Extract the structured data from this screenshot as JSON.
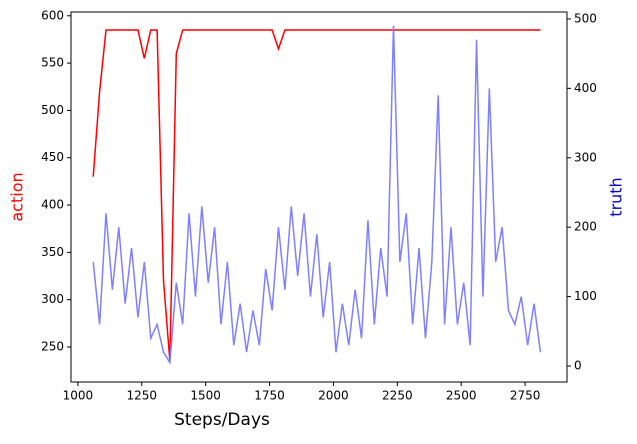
{
  "chart_data": {
    "type": "line",
    "x_label": "Steps/Days",
    "y_label": "action",
    "y2_label": "truth",
    "x": [
      1060,
      1085,
      1110,
      1135,
      1160,
      1185,
      1210,
      1235,
      1260,
      1285,
      1310,
      1335,
      1360,
      1385,
      1410,
      1435,
      1460,
      1485,
      1510,
      1535,
      1560,
      1585,
      1610,
      1635,
      1660,
      1685,
      1710,
      1735,
      1760,
      1785,
      1810,
      1835,
      1860,
      1885,
      1910,
      1935,
      1960,
      1985,
      2010,
      2035,
      2060,
      2085,
      2110,
      2135,
      2160,
      2185,
      2210,
      2235,
      2260,
      2285,
      2310,
      2335,
      2360,
      2385,
      2410,
      2435,
      2460,
      2485,
      2510,
      2535,
      2560,
      2585,
      2610,
      2635,
      2660,
      2685,
      2710,
      2735,
      2760,
      2785,
      2810
    ],
    "series": [
      {
        "name": "action",
        "color": "#ff0000",
        "axis": "y",
        "values": [
          430,
          520,
          585,
          585,
          585,
          585,
          585,
          585,
          555,
          585,
          585,
          320,
          235,
          560,
          585,
          585,
          585,
          585,
          585,
          585,
          585,
          585,
          585,
          585,
          585,
          585,
          585,
          585,
          585,
          565,
          585,
          585,
          585,
          585,
          585,
          585,
          585,
          585,
          585,
          585,
          585,
          585,
          585,
          585,
          585,
          585,
          585,
          585,
          585,
          585,
          585,
          585,
          585,
          585,
          585,
          585,
          585,
          585,
          585,
          585,
          585,
          585,
          585,
          585,
          585,
          585,
          585,
          585,
          585,
          585,
          585
        ]
      },
      {
        "name": "truth",
        "color": "#8080ff",
        "axis": "y2",
        "values": [
          150,
          60,
          220,
          110,
          200,
          90,
          170,
          70,
          150,
          40,
          60,
          20,
          5,
          120,
          60,
          220,
          100,
          230,
          120,
          200,
          60,
          150,
          30,
          90,
          20,
          80,
          30,
          140,
          80,
          200,
          110,
          230,
          130,
          220,
          100,
          190,
          70,
          150,
          20,
          90,
          30,
          110,
          40,
          210,
          60,
          170,
          100,
          490,
          150,
          220,
          60,
          170,
          40,
          150,
          390,
          60,
          200,
          60,
          120,
          30,
          470,
          100,
          400,
          150,
          200,
          80,
          60,
          100,
          30,
          90,
          20
        ]
      }
    ],
    "xlim": [
      973,
      2914
    ],
    "xticks": [
      1000,
      1250,
      1500,
      1750,
      2000,
      2250,
      2500,
      2750
    ],
    "ylim": [
      213,
      604
    ],
    "yticks": [
      250,
      300,
      350,
      400,
      450,
      500,
      550,
      600
    ],
    "y2lim": [
      -23,
      510
    ],
    "y2ticks": [
      0,
      100,
      200,
      300,
      400,
      500
    ]
  }
}
